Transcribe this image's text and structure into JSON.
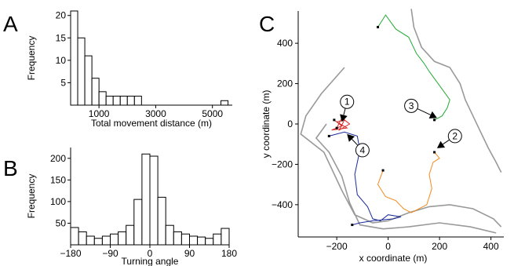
{
  "chart_data": [
    {
      "panel": "A",
      "type": "bar",
      "xlabel": "Total movement distance (m)",
      "ylabel": "Frequency",
      "xlim": [
        0,
        5700
      ],
      "ylim": [
        0,
        21
      ],
      "xticks": [
        1000,
        3000,
        5000
      ],
      "yticks": [
        5,
        10,
        15,
        20
      ],
      "bin_width": 250,
      "bins": [
        {
          "x0": 0,
          "value": 21
        },
        {
          "x0": 250,
          "value": 15
        },
        {
          "x0": 500,
          "value": 11
        },
        {
          "x0": 750,
          "value": 6
        },
        {
          "x0": 1000,
          "value": 3
        },
        {
          "x0": 1250,
          "value": 2
        },
        {
          "x0": 1500,
          "value": 2
        },
        {
          "x0": 1750,
          "value": 2
        },
        {
          "x0": 2000,
          "value": 2
        },
        {
          "x0": 2250,
          "value": 2
        },
        {
          "x0": 5300,
          "value": 1
        }
      ]
    },
    {
      "panel": "B",
      "type": "bar",
      "xlabel": "Turning angle",
      "ylabel": "Frequency",
      "xlim": [
        -180,
        180
      ],
      "ylim": [
        0,
        225
      ],
      "xticks": [
        -180,
        -90,
        0,
        90,
        180
      ],
      "yticks": [
        50,
        100,
        150,
        200
      ],
      "bin_width": 18,
      "bins": [
        {
          "x0": -180,
          "value": 40
        },
        {
          "x0": -162,
          "value": 30
        },
        {
          "x0": -144,
          "value": 20
        },
        {
          "x0": -126,
          "value": 15
        },
        {
          "x0": -108,
          "value": 20
        },
        {
          "x0": -90,
          "value": 25
        },
        {
          "x0": -72,
          "value": 30
        },
        {
          "x0": -54,
          "value": 45
        },
        {
          "x0": -36,
          "value": 105
        },
        {
          "x0": -18,
          "value": 210
        },
        {
          "x0": 0,
          "value": 205
        },
        {
          "x0": 18,
          "value": 110
        },
        {
          "x0": 36,
          "value": 45
        },
        {
          "x0": 54,
          "value": 30
        },
        {
          "x0": 72,
          "value": 25
        },
        {
          "x0": 90,
          "value": 20
        },
        {
          "x0": 108,
          "value": 18
        },
        {
          "x0": 126,
          "value": 15
        },
        {
          "x0": 144,
          "value": 25
        },
        {
          "x0": 162,
          "value": 38
        }
      ]
    },
    {
      "panel": "C",
      "type": "line",
      "xlabel": "x coordinate (m)",
      "ylabel": "y coordinate (m)",
      "xlim": [
        -350,
        450
      ],
      "ylim": [
        -560,
        560
      ],
      "xticks": [
        -200,
        0,
        200,
        400
      ],
      "yticks": [
        -400,
        -200,
        0,
        200,
        400
      ],
      "boundary_color": "#999999",
      "boundaries": [
        [
          [
            -170,
            280
          ],
          [
            -260,
            150
          ],
          [
            -320,
            40
          ],
          [
            -340,
            -50
          ],
          [
            -250,
            -140
          ],
          [
            -180,
            -330
          ],
          [
            -130,
            -450
          ],
          [
            -60,
            -490
          ],
          [
            0,
            -480
          ],
          [
            80,
            -440
          ],
          [
            160,
            -410
          ],
          [
            240,
            -400
          ],
          [
            330,
            -420
          ],
          [
            410,
            -470
          ],
          [
            440,
            -510
          ]
        ],
        [
          [
            90,
            570
          ],
          [
            100,
            480
          ],
          [
            130,
            380
          ],
          [
            180,
            310
          ],
          [
            240,
            280
          ],
          [
            280,
            200
          ],
          [
            300,
            120
          ],
          [
            330,
            40
          ],
          [
            360,
            -40
          ],
          [
            390,
            -120
          ],
          [
            420,
            -190
          ],
          [
            440,
            -240
          ]
        ],
        [
          [
            -240,
            0
          ],
          [
            -280,
            -70
          ],
          [
            -230,
            -140
          ],
          [
            -180,
            -260
          ],
          [
            -150,
            -390
          ],
          [
            -110,
            -500
          ],
          [
            -20,
            -520
          ],
          [
            80,
            -510
          ],
          [
            200,
            -490
          ],
          [
            320,
            -510
          ],
          [
            420,
            -540
          ]
        ]
      ],
      "tracks": [
        {
          "color": "#22aa33",
          "points": [
            [
              -40,
              480
            ],
            [
              -10,
              540
            ],
            [
              30,
              470
            ],
            [
              80,
              430
            ],
            [
              110,
              350
            ],
            [
              140,
              300
            ],
            [
              160,
              260
            ],
            [
              200,
              190
            ],
            [
              240,
              120
            ],
            [
              230,
              80
            ],
            [
              210,
              40
            ],
            [
              180,
              20
            ]
          ]
        },
        {
          "color": "#f28a1e",
          "points": [
            [
              -20,
              -230
            ],
            [
              -40,
              -300
            ],
            [
              -10,
              -360
            ],
            [
              30,
              -380
            ],
            [
              60,
              -420
            ],
            [
              90,
              -440
            ],
            [
              150,
              -400
            ],
            [
              170,
              -320
            ],
            [
              160,
              -250
            ],
            [
              175,
              -190
            ],
            [
              200,
              -170
            ],
            [
              180,
              -140
            ]
          ]
        },
        {
          "color": "#1a2a99",
          "points": [
            [
              -230,
              -60
            ],
            [
              -170,
              -40
            ],
            [
              -120,
              -60
            ],
            [
              -110,
              -130
            ],
            [
              -130,
              -250
            ],
            [
              -120,
              -350
            ],
            [
              -80,
              -410
            ],
            [
              -60,
              -470
            ],
            [
              -30,
              -480
            ],
            [
              0,
              -450
            ],
            [
              50,
              -460
            ],
            [
              20,
              -470
            ],
            [
              -60,
              -480
            ],
            [
              -110,
              -490
            ],
            [
              -140,
              -500
            ]
          ]
        },
        {
          "color": "#dd2222",
          "points": [
            [
              -210,
              20
            ],
            [
              -180,
              -10
            ],
            [
              -220,
              -30
            ],
            [
              -160,
              -20
            ],
            [
              -200,
              10
            ],
            [
              -170,
              20
            ],
            [
              -190,
              -30
            ],
            [
              -150,
              0
            ],
            [
              -180,
              30
            ],
            [
              -200,
              -20
            ]
          ]
        }
      ],
      "annotations": [
        {
          "label": "1",
          "x": -160,
          "y": 110,
          "tip_x": -180,
          "tip_y": 10
        },
        {
          "label": "2",
          "x": 260,
          "y": -60,
          "tip_x": 190,
          "tip_y": -120
        },
        {
          "label": "3",
          "x": 90,
          "y": 90,
          "tip_x": 190,
          "tip_y": 30
        },
        {
          "label": "4",
          "x": -100,
          "y": -130,
          "tip_x": -160,
          "tip_y": -50
        }
      ]
    }
  ],
  "panel_letters": [
    "A",
    "B",
    "C"
  ]
}
